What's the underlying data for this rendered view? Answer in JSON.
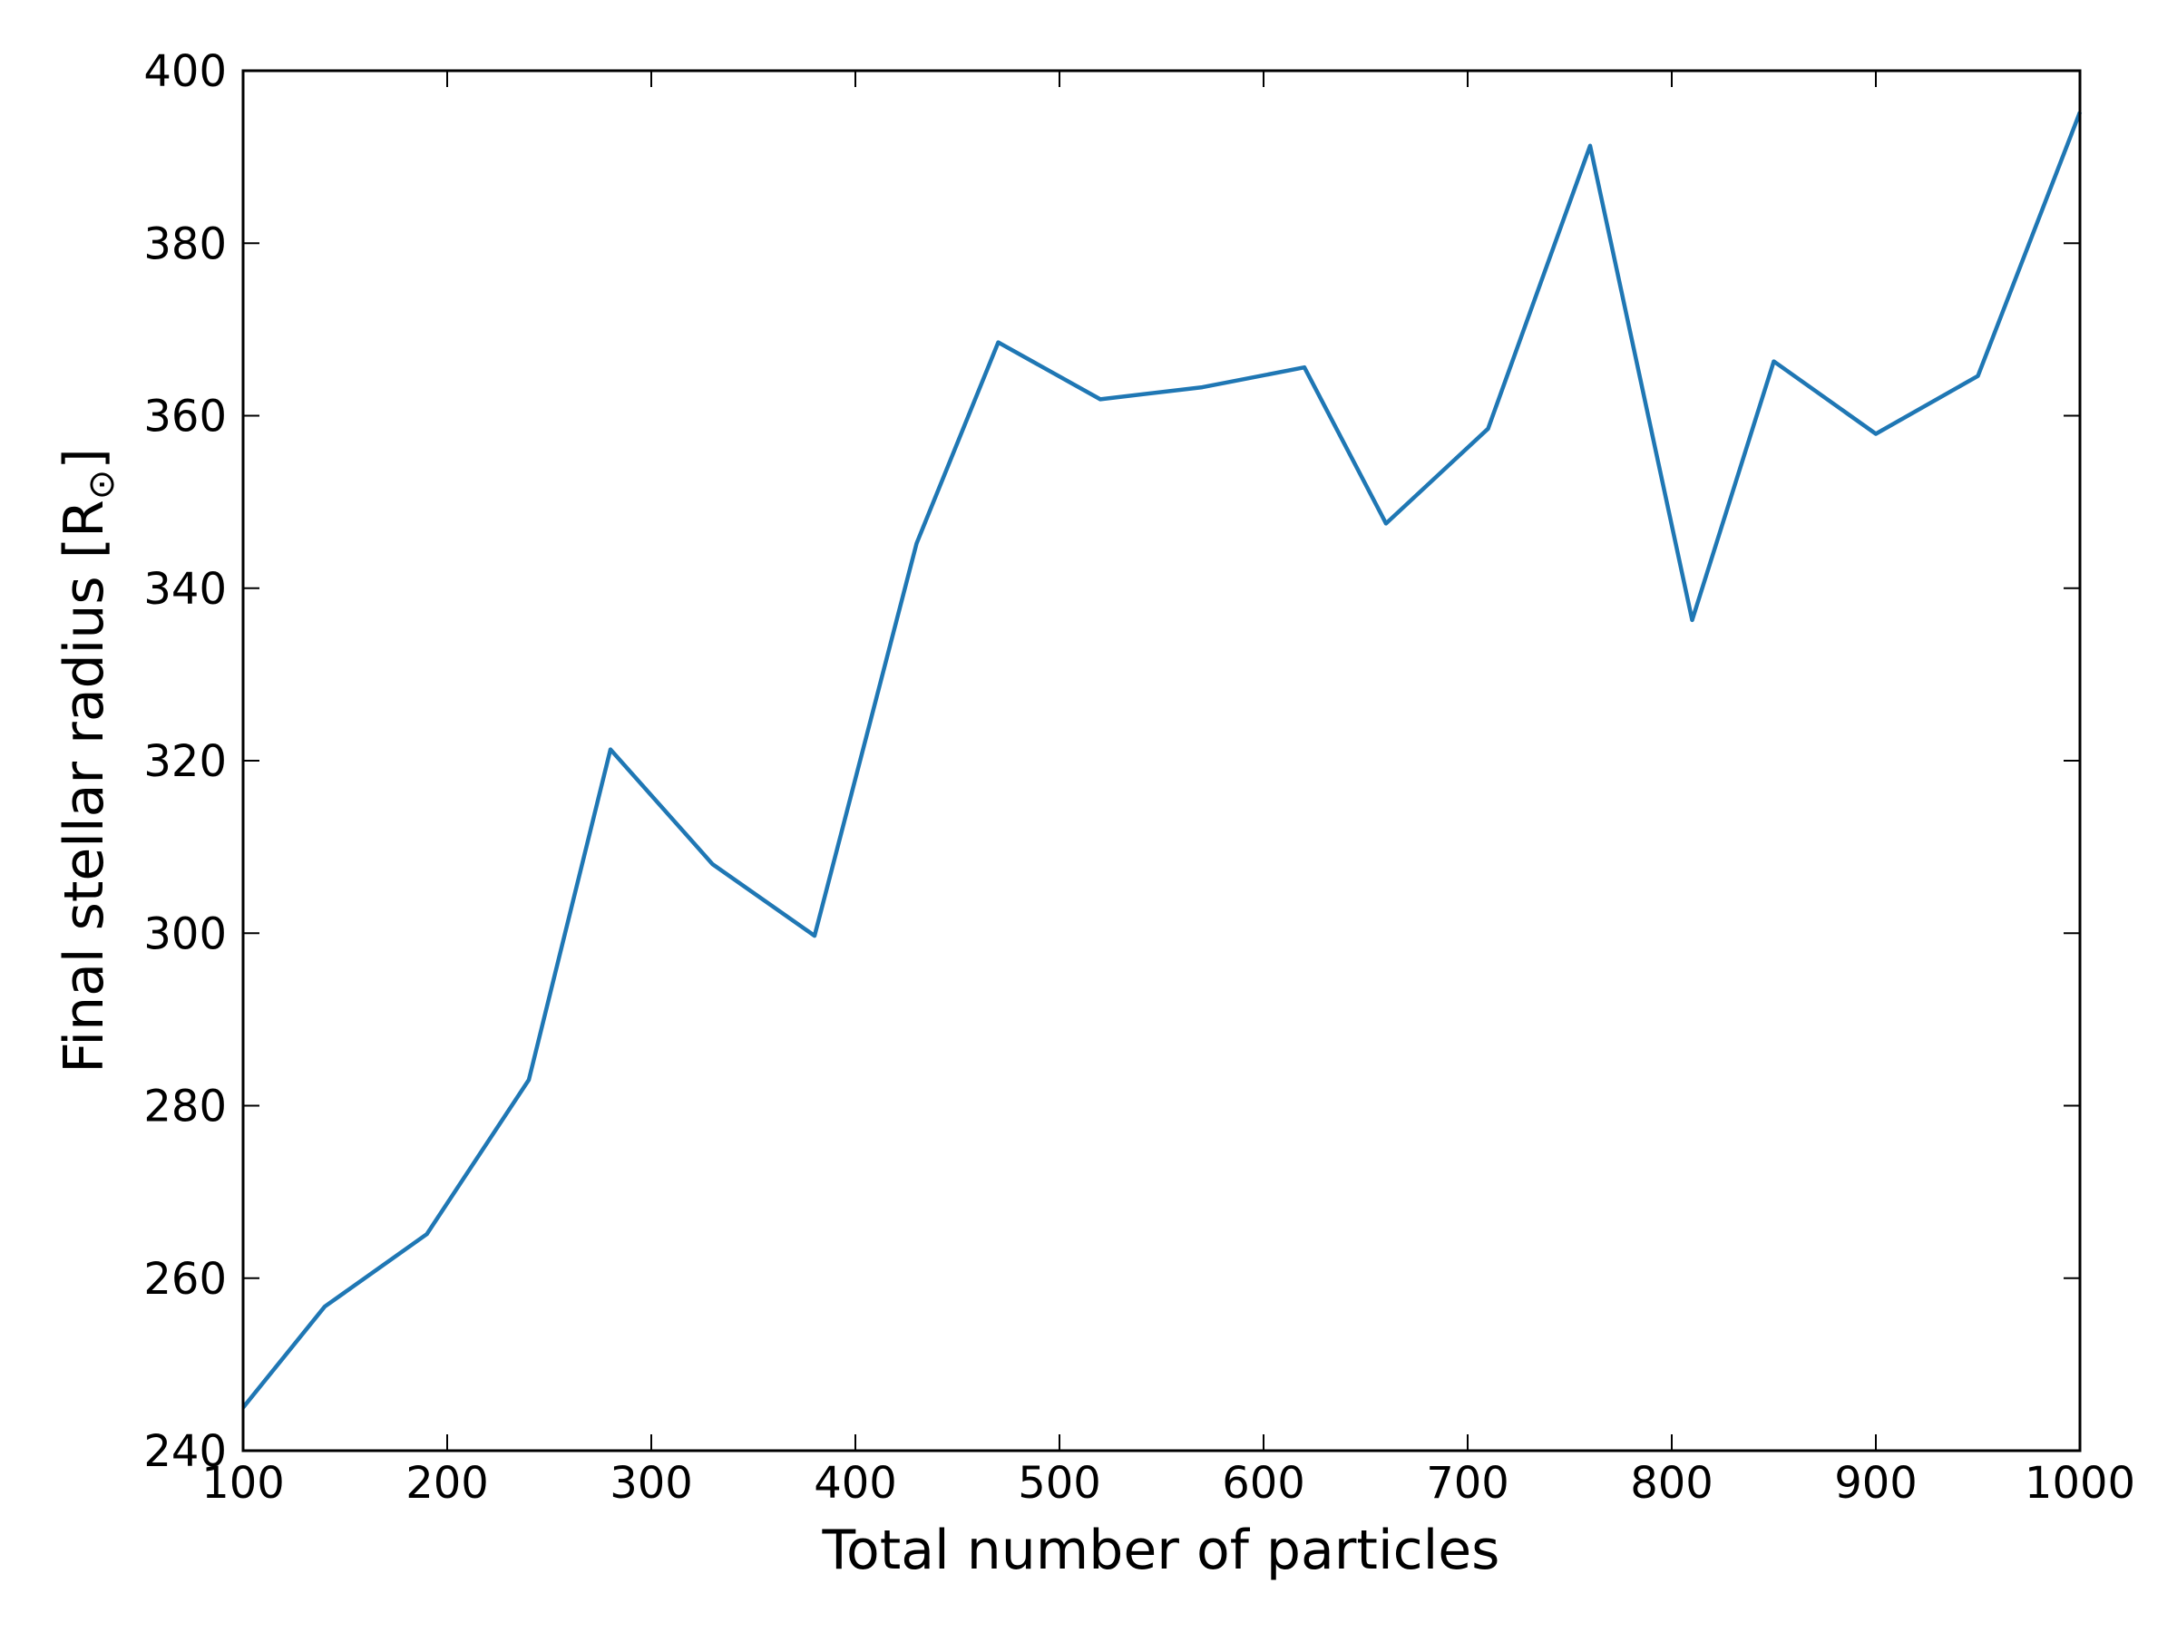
{
  "chart_data": {
    "type": "line",
    "title": "",
    "xlabel": "Total number of particles",
    "ylabel": "Final stellar radius [R",
    "ylabel_subscript": "⊙",
    "ylabel_close": "]",
    "xlim": [
      100,
      1000
    ],
    "ylim": [
      240,
      400
    ],
    "xticks": [
      100,
      200,
      300,
      400,
      500,
      600,
      700,
      800,
      900,
      1000
    ],
    "yticks": [
      240,
      260,
      280,
      300,
      320,
      340,
      360,
      380,
      400
    ],
    "grid": false,
    "series": [
      {
        "name": "Final stellar radius",
        "color": "#1f77b4",
        "x": [
          100,
          140,
          190,
          240,
          280,
          330,
          380,
          430,
          470,
          520,
          570,
          620,
          660,
          710,
          760,
          810,
          850,
          900,
          950,
          1000
        ],
        "values": [
          245,
          256.7,
          265.1,
          283,
          321.3,
          308,
          299.7,
          345.2,
          368.5,
          361.9,
          363.3,
          365.6,
          347.5,
          358.5,
          391.3,
          336.3,
          366.3,
          357.9,
          364.6,
          395.2
        ]
      }
    ]
  }
}
